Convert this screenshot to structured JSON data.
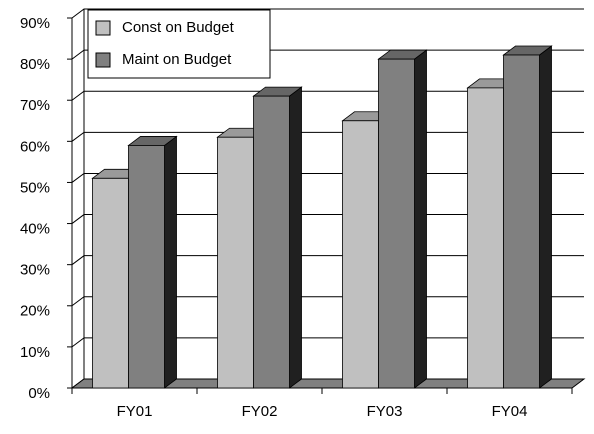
{
  "chart_data": {
    "type": "bar",
    "categories": [
      "FY01",
      "FY02",
      "FY03",
      "FY04"
    ],
    "series": [
      {
        "name": "Const on Budget",
        "color": "#c0c0c0",
        "values": [
          51,
          61,
          65,
          73
        ]
      },
      {
        "name": "Maint on Budget",
        "color": "#808080",
        "values": [
          59,
          71,
          80,
          81
        ]
      }
    ],
    "ylim": [
      0,
      90
    ],
    "yticks": [
      {
        "value": 0,
        "label": "0%"
      },
      {
        "value": 10,
        "label": "10%"
      },
      {
        "value": 20,
        "label": "20%"
      },
      {
        "value": 30,
        "label": "30%"
      },
      {
        "value": 40,
        "label": "40%"
      },
      {
        "value": 50,
        "label": "50%"
      },
      {
        "value": 60,
        "label": "60%"
      },
      {
        "value": 70,
        "label": "70%"
      },
      {
        "value": 80,
        "label": "80%"
      },
      {
        "value": 90,
        "label": "90%"
      }
    ],
    "grid": true,
    "legend": "upper left"
  }
}
